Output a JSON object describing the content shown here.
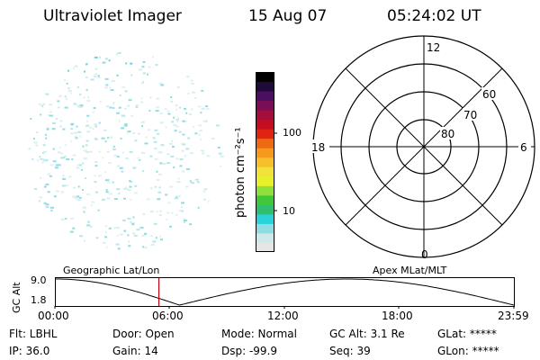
{
  "header": {
    "title": "Ultraviolet Imager",
    "date": "15 Aug 07",
    "time": "05:24:02 UT"
  },
  "colorbar": {
    "label": "photon cm⁻²s⁻¹",
    "ticks": [
      "100",
      "10"
    ],
    "colors": [
      "#e6e6e6",
      "#cfe9ea",
      "#8fdde2",
      "#2ad3dc",
      "#2fbf6f",
      "#3ec83a",
      "#8fe03a",
      "#e8f02a",
      "#f0e23a",
      "#f5c02a",
      "#f59a1a",
      "#ee6a12",
      "#e02414",
      "#c40e20",
      "#a40e3a",
      "#7a0e56",
      "#4a0e62",
      "#200a3a",
      "#000000"
    ]
  },
  "polar": {
    "mlt_labels": {
      "top": "12",
      "left": "18",
      "right": "6",
      "bottom": "0"
    },
    "lat_labels": [
      "60",
      "70",
      "80"
    ]
  },
  "orbit": {
    "geo_label": "Geographic Lat/Lon",
    "apex_label": "Apex MLat/MLT",
    "y_axis_label": "GC Alt",
    "y_ticks": [
      "9.0",
      "1.8"
    ],
    "x_ticks": [
      "00:00",
      "06:00",
      "12:00",
      "18:00",
      "23:59"
    ],
    "current_time_fraction": 0.225,
    "marker_color": "#c0000f"
  },
  "status": {
    "flt": "Flt: LBHL",
    "door": "Door: Open",
    "mode": "Mode: Normal",
    "gc_alt": "GC Alt: 3.1 Re",
    "glat": "GLat: *****",
    "ip": "IP: 36.0",
    "gain": "Gain: 14",
    "dsp": "Dsp:  -99.9",
    "seq": "Seq: 39",
    "glon": "GLon: *****"
  },
  "image": {
    "speckle_colors": [
      "#d6eef0",
      "#b8e6ea",
      "#8fdde2",
      "#e3eef0"
    ]
  }
}
